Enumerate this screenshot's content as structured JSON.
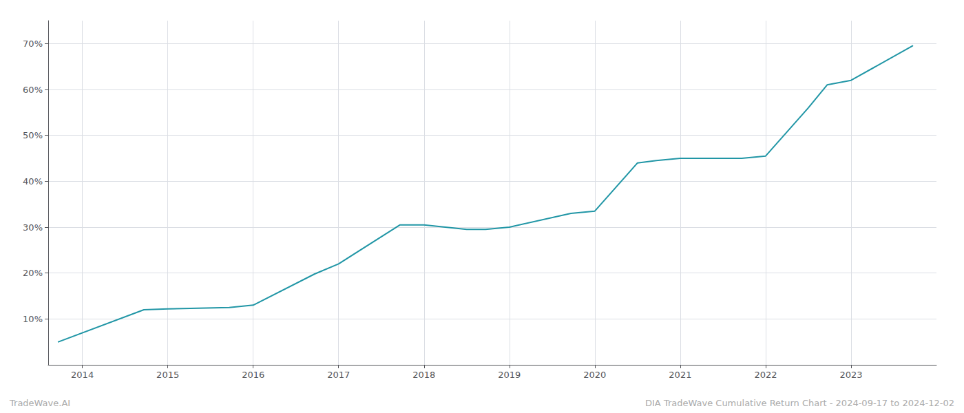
{
  "chart_data": {
    "type": "line",
    "x": [
      2013.72,
      2014.72,
      2015.0,
      2015.72,
      2016.0,
      2016.72,
      2017.0,
      2017.72,
      2018.0,
      2018.5,
      2018.72,
      2019.0,
      2019.72,
      2020.0,
      2020.5,
      2020.72,
      2021.0,
      2021.72,
      2022.0,
      2022.5,
      2022.72,
      2023.0,
      2023.72
    ],
    "values": [
      5.0,
      12.0,
      12.2,
      12.5,
      13.0,
      19.8,
      22.0,
      30.5,
      30.5,
      29.5,
      29.5,
      30.0,
      33.0,
      33.5,
      44.0,
      44.5,
      45.0,
      45.0,
      45.5,
      56.0,
      61.0,
      62.0,
      69.5
    ],
    "color": "#2196a6",
    "xlim": [
      2013.6,
      2024.0
    ],
    "ylim": [
      0,
      75
    ],
    "xticks": [
      2014,
      2015,
      2016,
      2017,
      2018,
      2019,
      2020,
      2021,
      2022,
      2023
    ],
    "yticks": [
      {
        "value": 10,
        "label": "10%"
      },
      {
        "value": 20,
        "label": "20%"
      },
      {
        "value": 30,
        "label": "30%"
      },
      {
        "value": 40,
        "label": "40%"
      },
      {
        "value": 50,
        "label": "50%"
      },
      {
        "value": 60,
        "label": "60%"
      },
      {
        "value": 70,
        "label": "70%"
      }
    ],
    "grid": true,
    "annotations": [
      "TradeWave.AI",
      "DIA TradeWave Cumulative Return Chart - 2024-09-17 to 2024-12-02"
    ]
  }
}
